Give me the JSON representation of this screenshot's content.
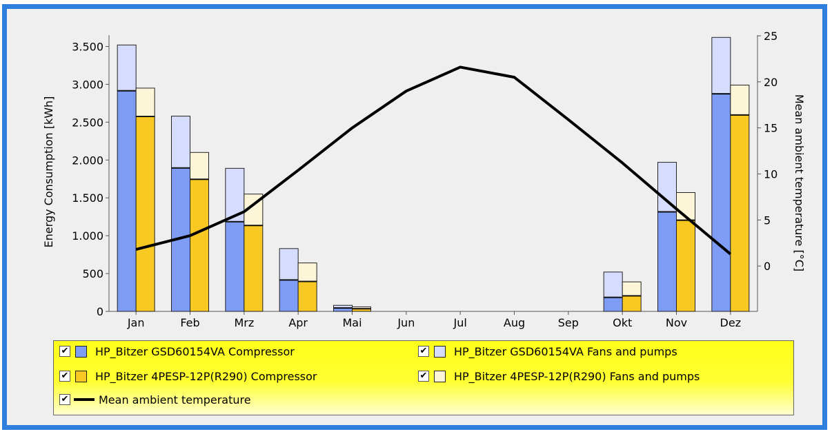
{
  "chart_data": {
    "type": "bar",
    "categories": [
      "Jan",
      "Feb",
      "Mrz",
      "Apr",
      "Mai",
      "Jun",
      "Jul",
      "Aug",
      "Sep",
      "Okt",
      "Nov",
      "Dez"
    ],
    "ylabel": "Energy Consumption [kWh]",
    "y2label": "Mean ambient temperature [°C]",
    "ylim": [
      0,
      3650
    ],
    "y2lim": [
      -5,
      25
    ],
    "yticks": [
      {
        "v": 0,
        "label": "0"
      },
      {
        "v": 500,
        "label": "500"
      },
      {
        "v": 1000,
        "label": "1.000"
      },
      {
        "v": 1500,
        "label": "1.500"
      },
      {
        "v": 2000,
        "label": "2.000"
      },
      {
        "v": 2500,
        "label": "2.500"
      },
      {
        "v": 3000,
        "label": "3.000"
      },
      {
        "v": 3500,
        "label": "3.500"
      }
    ],
    "y2ticks": [
      {
        "v": 0,
        "label": "0"
      },
      {
        "v": 5,
        "label": "5"
      },
      {
        "v": 10,
        "label": "10"
      },
      {
        "v": 15,
        "label": "15"
      },
      {
        "v": 20,
        "label": "20"
      },
      {
        "v": 25,
        "label": "25"
      }
    ],
    "series": [
      {
        "name": "HP_Bitzer GSD60154VA Compressor",
        "stack": "A",
        "color": "#7f9cf5",
        "values": [
          2920,
          1900,
          1190,
          420,
          50,
          0,
          0,
          0,
          0,
          190,
          1320,
          2880
        ]
      },
      {
        "name": "HP_Bitzer GSD60154VA Fans and pumps",
        "stack": "A",
        "color": "#d5dcfd",
        "values": [
          600,
          680,
          700,
          410,
          30,
          0,
          0,
          0,
          0,
          330,
          650,
          740
        ]
      },
      {
        "name": "HP_Bitzer 4PESP-12P(R290) Compressor",
        "stack": "B",
        "color": "#f8c823",
        "values": [
          2580,
          1750,
          1140,
          400,
          40,
          0,
          0,
          0,
          0,
          210,
          1210,
          2600
        ]
      },
      {
        "name": "HP_Bitzer 4PESP-12P(R290) Fans and pumps",
        "stack": "B",
        "color": "#fdf5d8",
        "values": [
          370,
          350,
          410,
          240,
          20,
          0,
          0,
          0,
          0,
          180,
          360,
          390
        ]
      }
    ],
    "temperature": {
      "name": "Mean ambient temperature",
      "values": [
        1.8,
        3.3,
        5.9,
        10.4,
        15.0,
        19.0,
        21.6,
        20.5,
        15.9,
        11.2,
        6.2,
        1.3
      ]
    },
    "legend_position": "bottom"
  },
  "legend": {
    "items": [
      {
        "label": "HP_Bitzer GSD60154VA Compressor",
        "checked": "✔"
      },
      {
        "label": "HP_Bitzer GSD60154VA Fans and pumps",
        "checked": "✔"
      },
      {
        "label": "HP_Bitzer 4PESP-12P(R290) Compressor",
        "checked": "✔"
      },
      {
        "label": "HP_Bitzer 4PESP-12P(R290) Fans and pumps",
        "checked": "✔"
      },
      {
        "label": "Mean ambient temperature",
        "checked": "✔"
      }
    ]
  }
}
